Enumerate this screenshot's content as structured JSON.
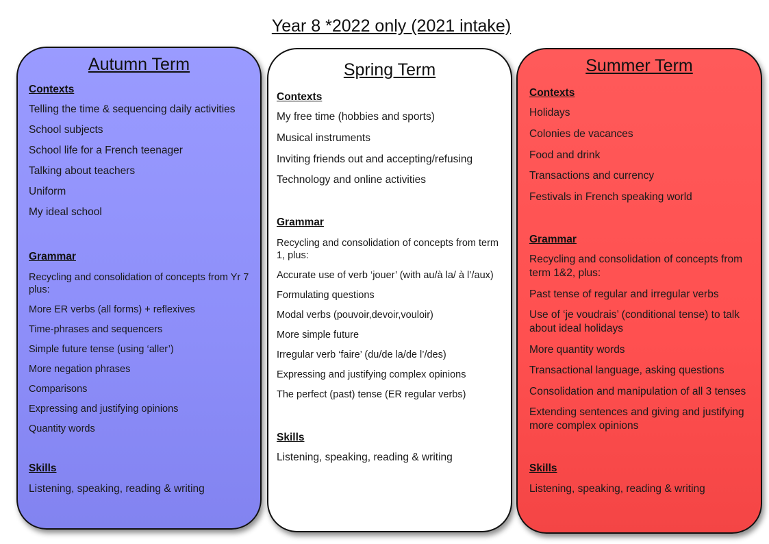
{
  "page_title": "Year 8 *2022 only (2021 intake)",
  "autumn": {
    "title": "Autumn Term",
    "contexts_heading": "Contexts",
    "contexts": [
      "Telling the time & sequencing daily activities",
      "School subjects",
      "School life for a French teenager",
      "Talking about teachers",
      "Uniform",
      "My ideal school"
    ],
    "grammar_heading": "Grammar",
    "grammar": [
      "Recycling and consolidation of concepts from Yr 7 plus:",
      "More ER verbs (all forms) + reflexives",
      "Time-phrases and sequencers",
      "Simple future tense (using ‘aller’)",
      "More negation phrases",
      "Comparisons",
      "Expressing and justifying opinions",
      "Quantity words"
    ],
    "skills_heading": "Skills",
    "skills": [
      "Listening, speaking, reading & writing"
    ]
  },
  "spring": {
    "title": "Spring Term",
    "contexts_heading": "Contexts",
    "contexts": [
      "My free time (hobbies and sports)",
      "Musical instruments",
      "Inviting friends out and accepting/refusing",
      "Technology and online activities"
    ],
    "grammar_heading": "Grammar",
    "grammar": [
      "Recycling and consolidation of concepts from term 1, plus:",
      "Accurate use of verb ‘jouer’ (with au/à la/ à l’/aux)",
      "Formulating questions",
      "Modal verbs (pouvoir,devoir,vouloir)",
      "More simple future",
      "Irregular verb ‘faire’ (du/de la/de l’/des)",
      "Expressing and justifying complex opinions",
      "The perfect (past) tense (ER regular verbs)"
    ],
    "skills_heading": "Skills",
    "skills": [
      "Listening, speaking, reading & writing"
    ]
  },
  "summer": {
    "title": "Summer Term",
    "contexts_heading": "Contexts",
    "contexts": [
      "Holidays",
      "Colonies de vacances",
      "Food and drink",
      "Transactions and currency",
      "Festivals in French speaking world"
    ],
    "grammar_heading": "Grammar",
    "grammar": [
      "Recycling and consolidation of concepts from term 1&2, plus:",
      "Past tense of regular and irregular verbs",
      "Use of ‘je voudrais’ (conditional tense) to talk about ideal holidays",
      "More quantity words",
      "Transactional language, asking questions",
      "Consolidation and manipulation of all 3 tenses",
      "Extending sentences and giving and justifying more complex opinions"
    ],
    "skills_heading": "Skills",
    "skills": [
      "Listening, speaking, reading & writing"
    ]
  },
  "colors": {
    "autumn_fill": "#8d8ef9",
    "spring_fill": "#ffffff",
    "summer_fill": "#ff5050"
  }
}
